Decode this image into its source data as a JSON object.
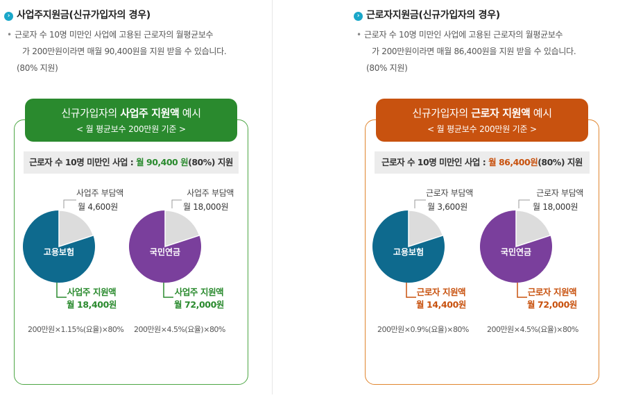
{
  "employer": {
    "title": "사업주지원금(신규가입자의 경우)",
    "desc_line1": "근로자 수 10명 미만인 사업에 고용된 근로자의 월평균보수",
    "desc_line2": "가 200만원이라면 매월 90,400원을 지원 받을 수 있습니다.",
    "desc_note": "(80% 지원)",
    "banner_pre": "신규가입자의 ",
    "banner_bold": "사업주 지원액",
    "banner_post": " 예시",
    "banner_sub": "< 월 평균보수 200만원 기준 >",
    "summary_pre": "근로자 수 10명 미만인 사업 : ",
    "summary_amt": "월 90,400 원",
    "summary_post": "(80%) 지원",
    "pie1": {
      "label": "고용보험",
      "burden_label": "사업주 부담액",
      "burden_amt": "월 4,600원",
      "support_label": "사업주 지원액",
      "support_amt": "월 18,400원",
      "formula": "200만원×1.15%(요율)×80%",
      "support_fraction": 0.8
    },
    "pie2": {
      "label": "국민연금",
      "burden_label": "사업주 부담액",
      "burden_amt": "월 18,000원",
      "support_label": "사업주 지원액",
      "support_amt": "월 72,000원",
      "formula": "200만원×4.5%(요율)×80%",
      "support_fraction": 0.8
    }
  },
  "worker": {
    "title": "근로자지원금(신규가입자의 경우)",
    "desc_line1": "근로자 수 10명 미만인 사업에 고용된 근로자의 월평균보수",
    "desc_line2": "가 200만원이라면 매월 86,400원을 지원 받을 수 있습니다.",
    "desc_note": "(80% 지원)",
    "banner_pre": "신규가입자의 ",
    "banner_bold": "근로자 지원액",
    "banner_post": " 예시",
    "banner_sub": "< 월 평균보수 200만원 기준 >",
    "summary_pre": "근로자 수 10명 미만인 사업 : ",
    "summary_amt": "월 86,400원",
    "summary_post": "(80%) 지원",
    "pie1": {
      "label": "고용보험",
      "burden_label": "근로자 부담액",
      "burden_amt": "월 3,600원",
      "support_label": "근로자 지원액",
      "support_amt": "월 14,400원",
      "formula": "200만원×0.9%(요율)×80%",
      "support_fraction": 0.8
    },
    "pie2": {
      "label": "국민연금",
      "burden_label": "근로자 부담액",
      "burden_amt": "월 18,000원",
      "support_label": "근로자 지원액",
      "support_amt": "월 72,000원",
      "formula": "200만원×4.5%(요율)×80%",
      "support_fraction": 0.8
    }
  },
  "colors": {
    "green": "#2a8a2e",
    "orange": "#c8520f",
    "employment_blue": "#0e6a8e",
    "pension_purple": "#7a3f9c",
    "burden_gray": "#dcdcdc"
  }
}
